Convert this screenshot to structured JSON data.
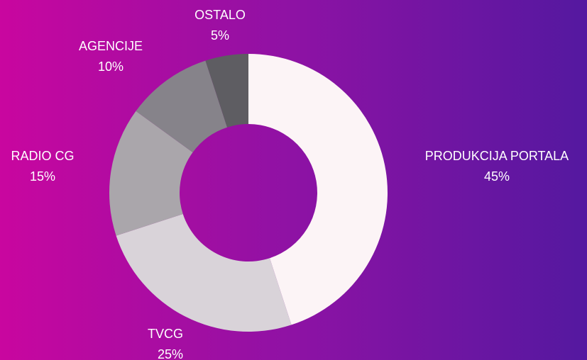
{
  "chart_data": {
    "type": "donut",
    "categories": [
      "PRODUKCIJA PORTALA",
      "TVCG",
      "RADIO CG",
      "AGENCIJE",
      "OSTALO"
    ],
    "values": [
      45,
      25,
      15,
      10,
      5
    ],
    "value_labels": [
      "45%",
      "25%",
      "15%",
      "10%",
      "5%"
    ],
    "colors": [
      "#fcf4f6",
      "#d9d3d9",
      "#aaa6ab",
      "#86838a",
      "#5e5d62"
    ]
  }
}
